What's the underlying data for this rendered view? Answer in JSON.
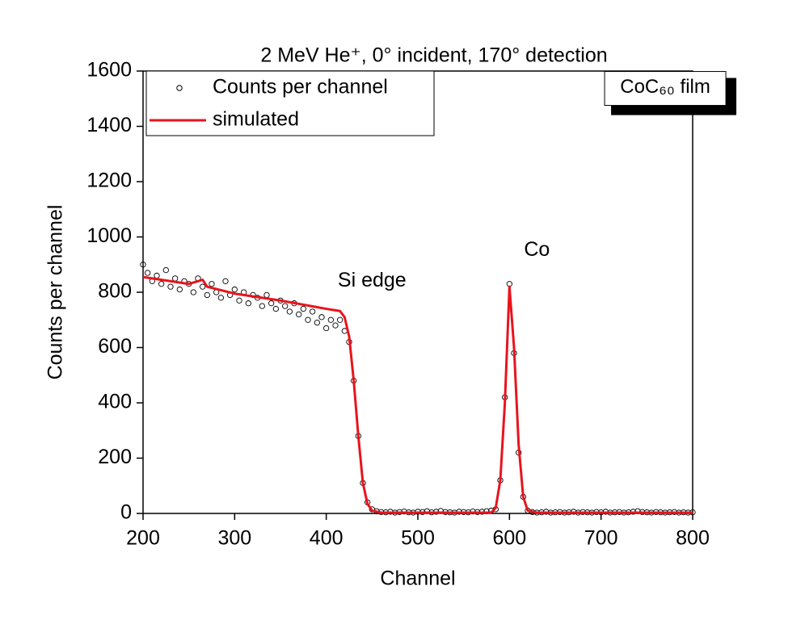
{
  "chart_data": {
    "type": "scatter",
    "title": "2 MeV He⁺, 0° incident, 170° detection",
    "x_label": "Channel",
    "y_label": "Counts per channel",
    "xlim": [
      200,
      800
    ],
    "xticks": [
      200,
      300,
      400,
      500,
      600,
      700,
      800
    ],
    "ylim": [
      0,
      1600
    ],
    "yticks": [
      0,
      200,
      400,
      600,
      800,
      1000,
      1200,
      1400,
      1600
    ],
    "legend": "upper left",
    "annotations": [
      {
        "text": "Si edge",
        "x": 450,
        "y": 840
      },
      {
        "text": "Co",
        "x": 630,
        "y": 950
      },
      {
        "text": "CoC₆₀ film",
        "x": 748,
        "y": 1540,
        "boxed": true
      }
    ],
    "series": [
      {
        "name": "Counts per channel",
        "style": "markers",
        "color": "#000000",
        "x": [
          200,
          205,
          210,
          215,
          220,
          225,
          230,
          235,
          240,
          245,
          250,
          255,
          260,
          265,
          270,
          275,
          280,
          285,
          290,
          295,
          300,
          305,
          310,
          315,
          320,
          325,
          330,
          335,
          340,
          345,
          350,
          355,
          360,
          365,
          370,
          375,
          380,
          385,
          390,
          395,
          400,
          405,
          410,
          415,
          420,
          425,
          430,
          435,
          440,
          445,
          450,
          455,
          460,
          465,
          470,
          475,
          480,
          485,
          490,
          495,
          500,
          505,
          510,
          515,
          520,
          525,
          530,
          535,
          540,
          545,
          550,
          555,
          560,
          565,
          570,
          575,
          580,
          585,
          590,
          595,
          600,
          605,
          610,
          615,
          620,
          625,
          630,
          635,
          640,
          645,
          650,
          655,
          660,
          665,
          670,
          675,
          680,
          685,
          690,
          695,
          700,
          705,
          710,
          715,
          720,
          725,
          730,
          735,
          740,
          745,
          750,
          755,
          760,
          765,
          770,
          775,
          780,
          785,
          790,
          795,
          800
        ],
        "values": [
          900,
          870,
          840,
          860,
          830,
          880,
          820,
          850,
          810,
          840,
          830,
          800,
          850,
          820,
          790,
          830,
          800,
          780,
          840,
          790,
          810,
          770,
          800,
          760,
          790,
          780,
          750,
          790,
          760,
          740,
          770,
          750,
          730,
          760,
          720,
          740,
          700,
          730,
          690,
          710,
          670,
          700,
          680,
          700,
          660,
          620,
          480,
          280,
          110,
          40,
          15,
          8,
          5,
          4,
          6,
          3,
          5,
          7,
          4,
          3,
          6,
          5,
          8,
          4,
          6,
          9,
          5,
          4,
          3,
          6,
          5,
          4,
          7,
          5,
          6,
          8,
          10,
          15,
          120,
          420,
          830,
          580,
          220,
          60,
          10,
          5,
          3,
          4,
          6,
          3,
          4,
          5,
          3,
          4,
          6,
          3,
          5,
          4,
          3,
          5,
          4,
          6,
          3,
          4,
          5,
          3,
          4,
          6,
          8,
          5,
          4,
          3,
          5,
          4,
          3,
          4,
          5,
          3,
          4,
          3,
          4
        ]
      },
      {
        "name": "simulated",
        "style": "line",
        "color": "#e8141c",
        "x": [
          200,
          250,
          260,
          265,
          270,
          300,
          350,
          400,
          415,
          420,
          425,
          430,
          435,
          440,
          445,
          450,
          460,
          580,
          585,
          590,
          595,
          600,
          605,
          610,
          615,
          620,
          630,
          800
        ],
        "values": [
          855,
          830,
          840,
          845,
          820,
          795,
          770,
          740,
          732,
          710,
          640,
          480,
          280,
          110,
          35,
          10,
          3,
          3,
          20,
          120,
          400,
          820,
          600,
          250,
          60,
          10,
          3,
          3
        ]
      }
    ]
  }
}
